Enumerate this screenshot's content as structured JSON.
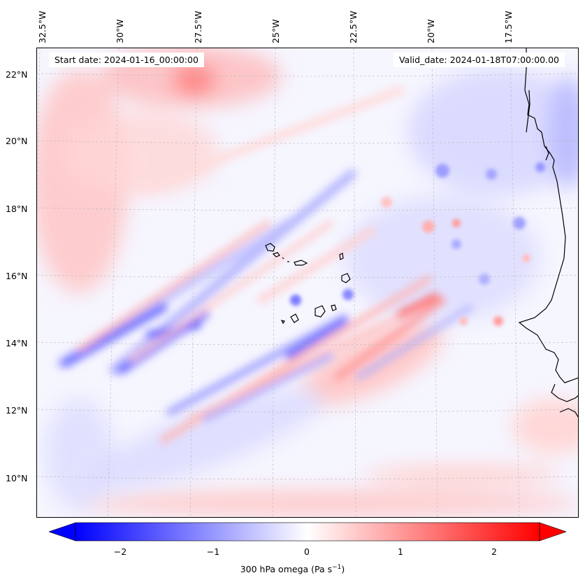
{
  "map": {
    "start_date": "Start date: 2024-01-16_00:00:00",
    "valid_date": "Valid_date: 2024-01-18T07:00:00.00",
    "lon_labels": [
      "32.5°W",
      "30°W",
      "27.5°W",
      "25°W",
      "22.5°W",
      "20°W",
      "17.5°W"
    ],
    "lat_labels": [
      "22°N",
      "20°N",
      "18°N",
      "16°N",
      "14°N",
      "12°N",
      "10°N"
    ],
    "extent": {
      "lon_min": -32.7,
      "lon_max": -15.2,
      "lat_min": 8.8,
      "lat_max": 22.8
    },
    "colors": {
      "neg": "#0000ff",
      "zero": "#ffffff",
      "pos": "#ff0000",
      "coast": "#000000"
    }
  },
  "colorbar": {
    "ticks": [
      "−2",
      "−1",
      "0",
      "1",
      "2"
    ],
    "tick_values": [
      -2,
      -1,
      0,
      1,
      2
    ],
    "range": [
      -2.5,
      2.5
    ],
    "label_main": "300 hPa omega (Pa s",
    "label_sup": "−1",
    "label_end": ")"
  }
}
